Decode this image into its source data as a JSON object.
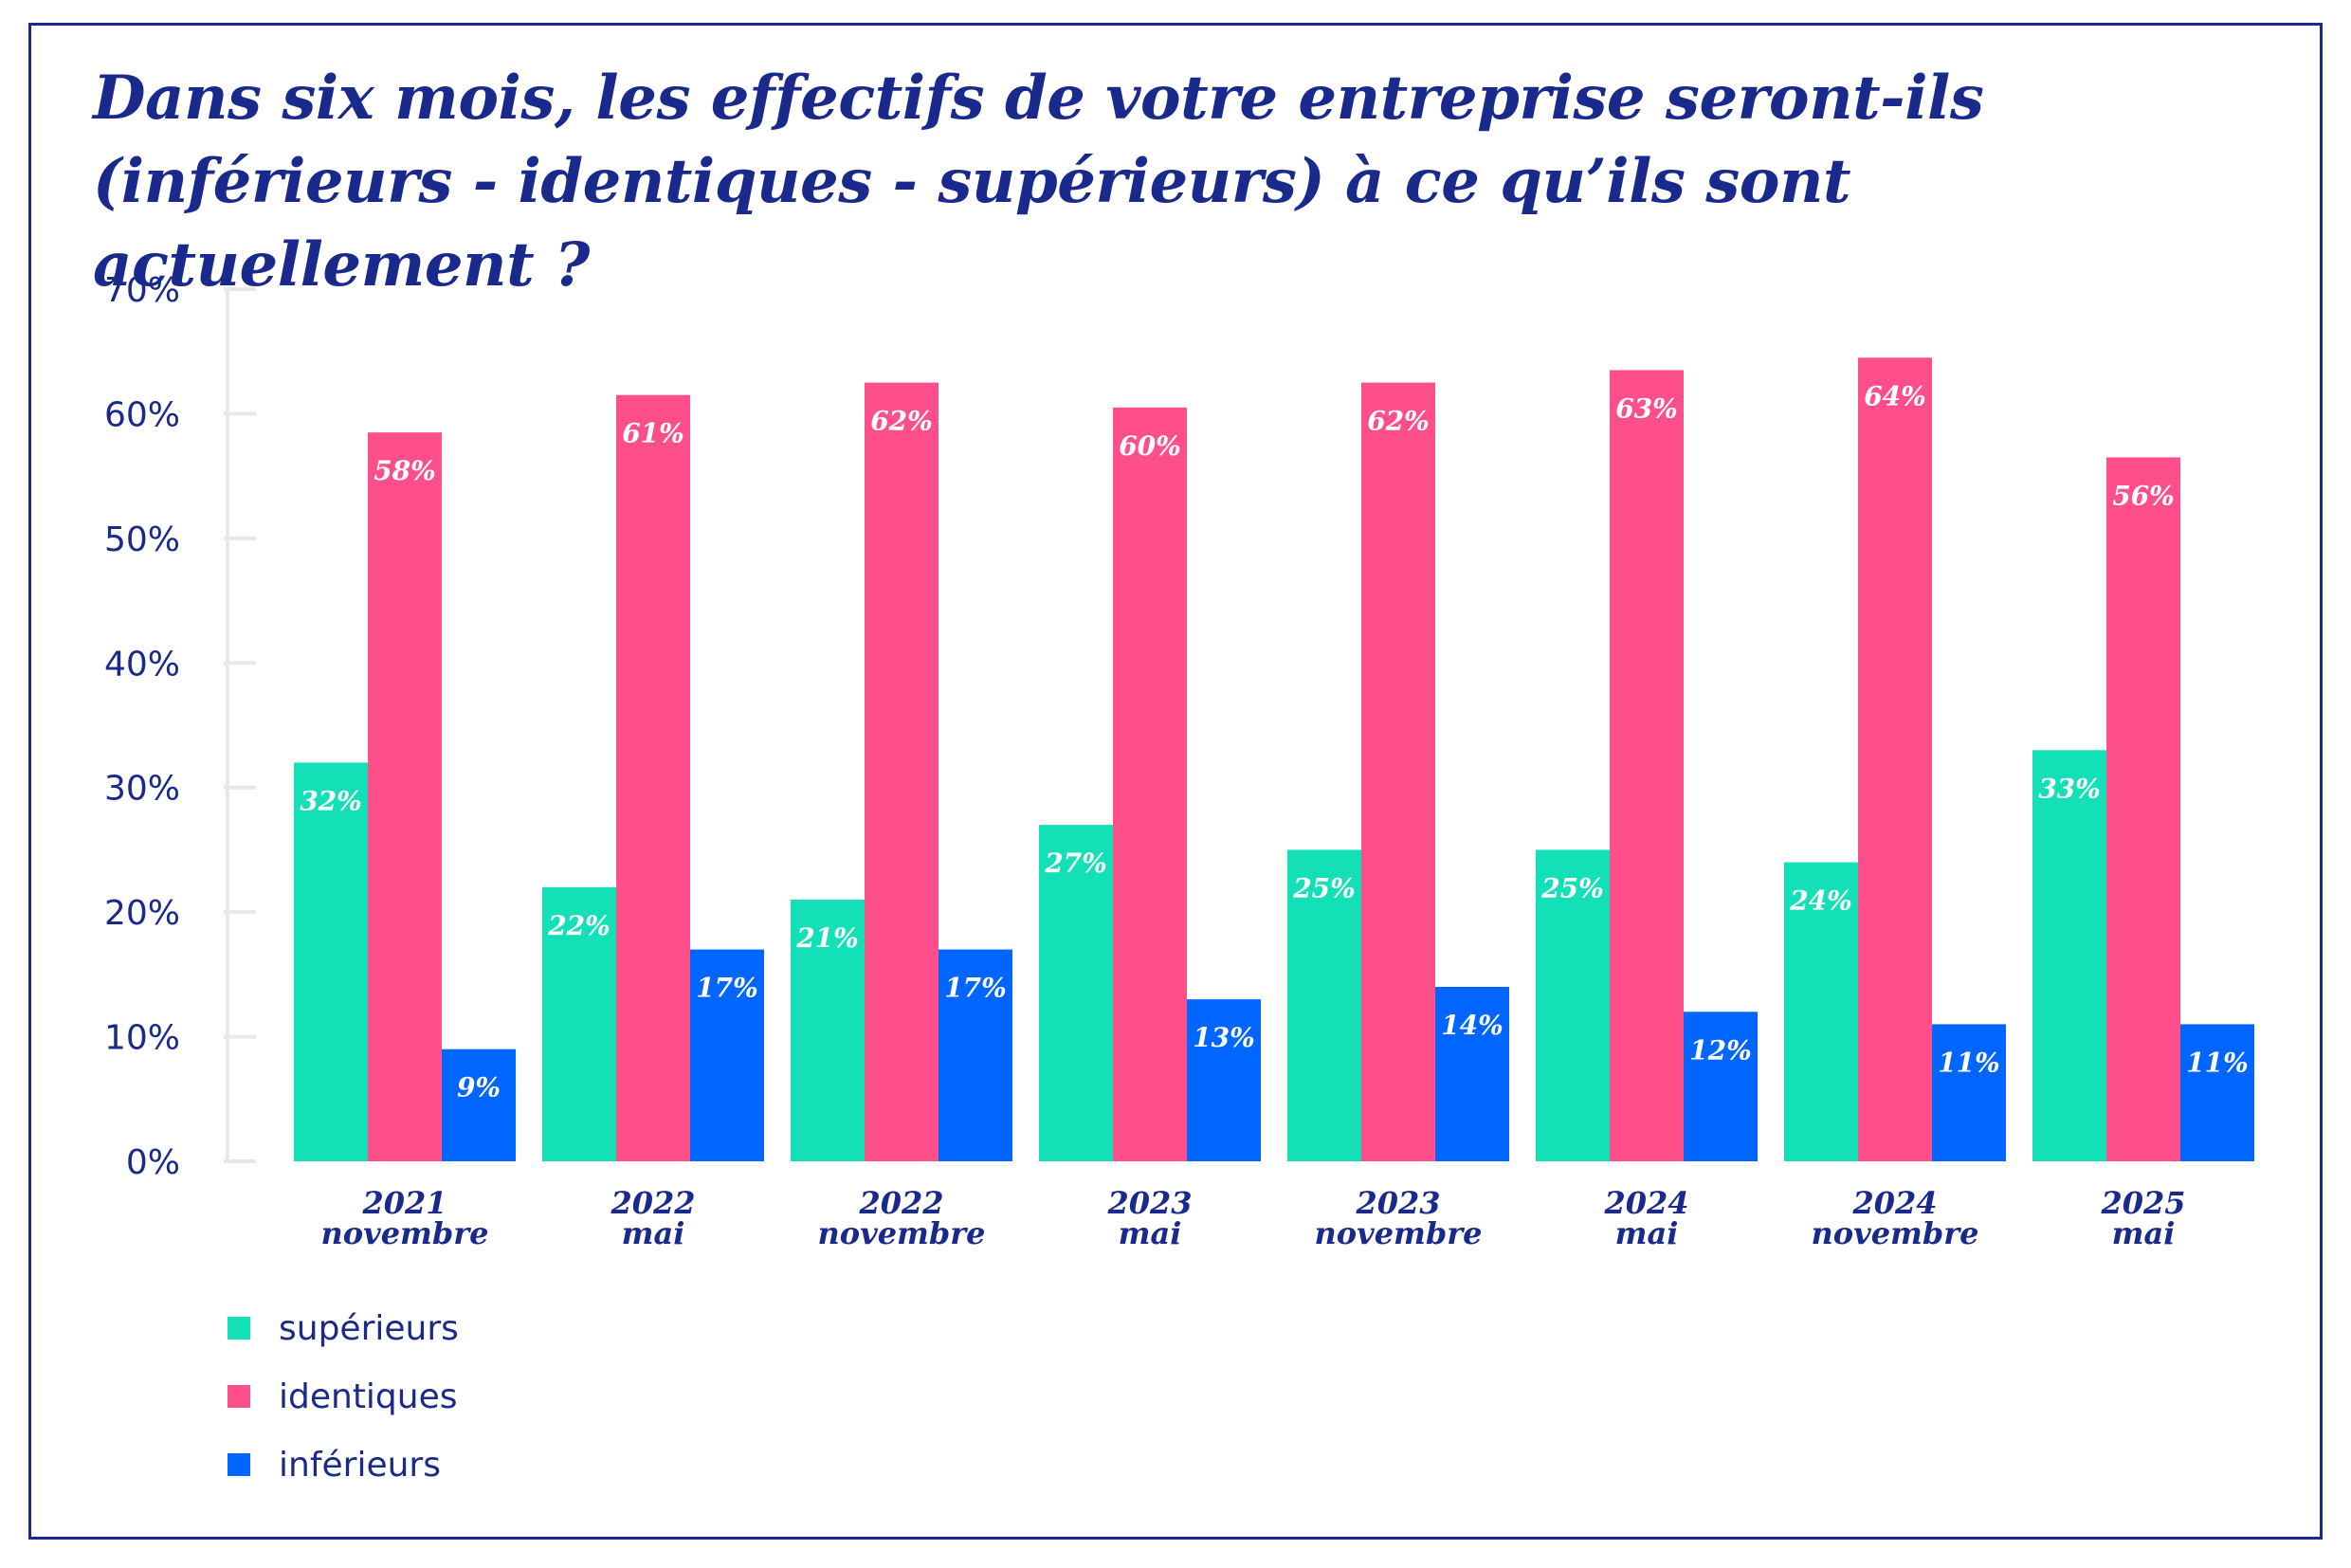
{
  "chart_data": {
    "type": "bar",
    "title": "Dans six mois, les effectifs de votre entreprise seront-ils",
    "subtitle": "(inférieurs - identiques - supérieurs) à ce qu’ils sont actuellement ?",
    "categories": [
      [
        "2021",
        "novembre"
      ],
      [
        "2022",
        "mai"
      ],
      [
        "2022",
        "novembre"
      ],
      [
        "2023",
        "mai"
      ],
      [
        "2023",
        "novembre"
      ],
      [
        "2024",
        "mai"
      ],
      [
        "2024",
        "novembre"
      ],
      [
        "2025",
        "mai"
      ]
    ],
    "series": [
      {
        "name": "supérieurs",
        "color": "#14e0b8",
        "values": [
          32,
          22,
          21,
          27,
          25,
          25,
          24,
          33
        ],
        "labels": [
          "32%",
          "22%",
          "21%",
          "27%",
          "25%",
          "25%",
          "24%",
          "33%"
        ]
      },
      {
        "name": "identiques",
        "color": "#ff4f8b",
        "values": [
          58.5,
          61.5,
          62.5,
          60.5,
          62.5,
          63.5,
          64.5,
          56.5
        ],
        "labels": [
          "58%",
          "61%",
          "62%",
          "60%",
          "62%",
          "63%",
          "64%",
          "56%"
        ]
      },
      {
        "name": "inférieurs",
        "color": "#0066ff",
        "values": [
          9,
          17,
          17,
          13,
          14,
          12,
          11,
          11
        ],
        "labels": [
          "9%",
          "17%",
          "17%",
          "13%",
          "14%",
          "12%",
          "11%",
          "11%"
        ]
      }
    ],
    "yticks": [
      "0%",
      "10%",
      "20%",
      "30%",
      "40%",
      "50%",
      "60%",
      "70%"
    ],
    "ylim": [
      0,
      70
    ],
    "grid": false,
    "legend_position": "bottom-left",
    "text_color": "#1a2a8c",
    "axis_color": "#e6e8ee"
  }
}
